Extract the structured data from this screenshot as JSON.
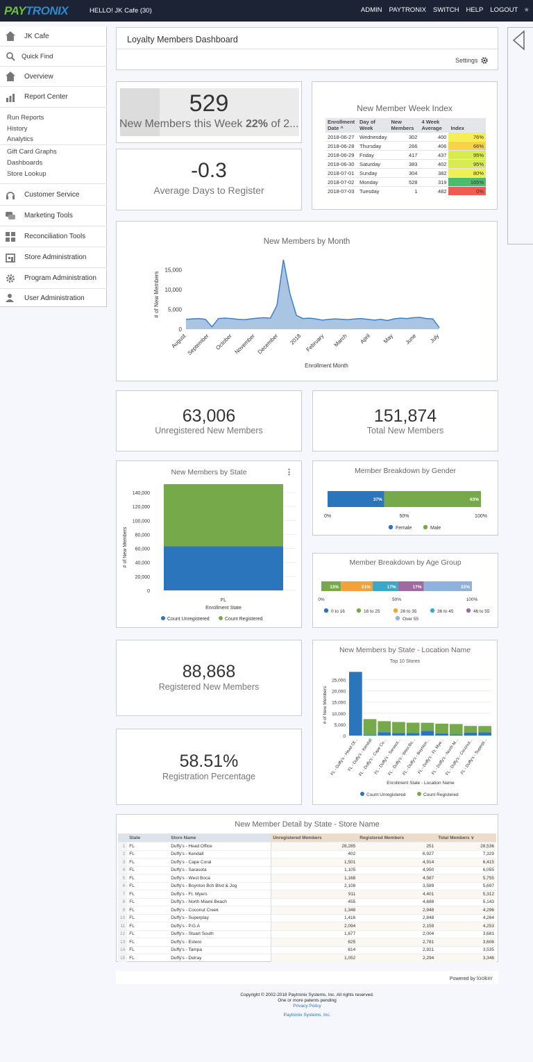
{
  "header": {
    "logo_pay": "PAY",
    "logo_tronix": "TRONIX",
    "greeting": "HELLO! JK Cafe (30)",
    "nav": [
      "ADMIN",
      "PAYTRONIX",
      "SWITCH",
      "HELP",
      "LOGOUT"
    ],
    "star": "★"
  },
  "sidebar": {
    "items": [
      {
        "label": "JK Cafe",
        "icon": "home-icon"
      },
      {
        "label": "Quick Find",
        "icon": "search-icon"
      },
      {
        "label": "Overview",
        "icon": "home-icon"
      },
      {
        "label": "Report Center",
        "icon": "bar-chart-icon"
      }
    ],
    "sub_items": [
      "Run Reports",
      "History",
      "Analytics",
      "Gift Card Graphs",
      "Dashboards",
      "Store Lookup"
    ],
    "sections": [
      {
        "label": "Customer Service",
        "icon": "headset-icon"
      },
      {
        "label": "Marketing Tools",
        "icon": "chat-icon"
      },
      {
        "label": "Reconciliation Tools",
        "icon": "grid-icon"
      },
      {
        "label": "Store Administration",
        "icon": "store-icon"
      },
      {
        "label": "Program Administration",
        "icon": "gear-icon"
      },
      {
        "label": "User Administration",
        "icon": "user-icon"
      }
    ]
  },
  "dashboard": {
    "title": "Loyalty Members Dashboard",
    "settings_label": "Settings"
  },
  "tiles": {
    "week_new": {
      "value": "529",
      "label_prefix": "New Members this Week ",
      "pct": "22%",
      "label_suffix": " of 2..."
    },
    "avg_days": {
      "value": "-0.3",
      "label": "Average Days to Register"
    },
    "unregistered": {
      "value": "63,006",
      "label": "Unregistered New Members"
    },
    "total": {
      "value": "151,874",
      "label": "Total New Members"
    },
    "registered": {
      "value": "88,868",
      "label": "Registered New Members"
    },
    "reg_pct": {
      "value": "58.51%",
      "label": "Registration Percentage"
    }
  },
  "week_index": {
    "title": "New Member Week Index",
    "headers": [
      "Enrollment Date ^",
      "Day of Week",
      "New Members",
      "4 Week Average",
      "Index"
    ],
    "rows": [
      {
        "date": "2018-06-27",
        "day": "Wednesday",
        "new": "302",
        "avg": "400",
        "index": "76%",
        "color": "#f5ef55"
      },
      {
        "date": "2018-06-28",
        "day": "Thursday",
        "new": "266",
        "avg": "406",
        "index": "66%",
        "color": "#f7d34a"
      },
      {
        "date": "2018-06-29",
        "day": "Friday",
        "new": "417",
        "avg": "437",
        "index": "95%",
        "color": "#d8ec52"
      },
      {
        "date": "2018-06-30",
        "day": "Saturday",
        "new": "383",
        "avg": "402",
        "index": "95%",
        "color": "#d8ec52"
      },
      {
        "date": "2018-07-01",
        "day": "Sunday",
        "new": "304",
        "avg": "382",
        "index": "80%",
        "color": "#eef055"
      },
      {
        "date": "2018-07-02",
        "day": "Monday",
        "new": "528",
        "avg": "319",
        "index": "165%",
        "color": "#4cbb6c"
      },
      {
        "date": "2018-07-03",
        "day": "Tuesday",
        "new": "1",
        "avg": "482",
        "index": "0%",
        "color": "#ef5c52"
      }
    ]
  },
  "chart_data": [
    {
      "type": "area",
      "title": "New Members by Month",
      "xlabel": "Enrollment Month",
      "ylabel": "# of New Members",
      "ylim": [
        0,
        17500
      ],
      "yticks": [
        "0",
        "5,000",
        "10,000",
        "15,000"
      ],
      "tick_labels": [
        "August",
        "September",
        "October",
        "November",
        "December",
        "2018",
        "February",
        "March",
        "April",
        "May",
        "June",
        "July"
      ],
      "values": [
        2500,
        2600,
        2700,
        2500,
        600,
        2700,
        2800,
        2700,
        2500,
        2400,
        2600,
        2800,
        2900,
        2800,
        6000,
        17500,
        9000,
        3500,
        2700,
        2800,
        2600,
        2300,
        2500,
        2600,
        2500,
        2400,
        2600,
        2700,
        2500,
        2300,
        2500,
        2200,
        2600,
        2800,
        2700,
        2900,
        3000,
        2700,
        2600,
        400
      ]
    },
    {
      "type": "bar",
      "title": "New Members by State",
      "xlabel": "Enrollment State",
      "ylabel": "# of New Members",
      "categories": [
        "FL"
      ],
      "ylim": [
        0,
        140000
      ],
      "yticks": [
        "0",
        "20,000",
        "40,000",
        "60,000",
        "80,000",
        "100,000",
        "120,000",
        "140,000"
      ],
      "series": [
        {
          "name": "Count Unregistered",
          "values": [
            63006
          ],
          "color": "#2a75bb"
        },
        {
          "name": "Count Registered",
          "values": [
            88868
          ],
          "color": "#76a94a"
        }
      ]
    },
    {
      "type": "bar",
      "title": "Member Breakdown by Gender",
      "ticks": [
        "0%",
        "50%",
        "100%"
      ],
      "series": [
        {
          "name": "Female",
          "value": 37,
          "label": "37%",
          "color": "#2a75bb"
        },
        {
          "name": "Male",
          "value": 63,
          "label": "63%",
          "color": "#76a94a"
        }
      ]
    },
    {
      "type": "bar",
      "title": "Member Breakdown by Age Group",
      "ticks": [
        "0%",
        "50%",
        "100%"
      ],
      "series": [
        {
          "name": "0 to 16",
          "value": 0,
          "label": "",
          "color": "#2a75bb"
        },
        {
          "name": "16 to 25",
          "value": 13,
          "label": "13%",
          "color": "#76a94a"
        },
        {
          "name": "26 to 35",
          "value": 21,
          "label": "21%",
          "color": "#f1a23b"
        },
        {
          "name": "36 to 45",
          "value": 17,
          "label": "17%",
          "color": "#3aa9c7"
        },
        {
          "name": "46 to 55",
          "value": 17,
          "label": "17%",
          "color": "#a06aa1"
        },
        {
          "name": "Over 55",
          "value": 32,
          "label": "32%",
          "color": "#8fb2dc"
        }
      ]
    },
    {
      "type": "bar",
      "title": "New Members by State - Location Name",
      "subtitle": "Top 10 Stores",
      "xlabel": "Enrollment State - Location Name",
      "ylabel": "# of New Members",
      "ylim": [
        0,
        28536
      ],
      "yticks": [
        "0",
        "5,000",
        "10,000",
        "15,000",
        "20,000",
        "25,000"
      ],
      "categories": [
        "FL - Duffy's - Head Of...",
        "FL - Duffy's - Kendall",
        "FL - Duffy's - Cape Co...",
        "FL - Duffy's - Sarasot...",
        "FL - Duffy's - West Bo...",
        "FL - Duffy's - Boynton...",
        "FL - Duffy's - Ft. Mye...",
        "FL - Duffy's - North M...",
        "FL - Duffy's - Coconut...",
        "FL - Duffy's - Superpl..."
      ],
      "series": [
        {
          "name": "Count Unregistered",
          "values": [
            28285,
            402,
            1501,
            1105,
            1168,
            2108,
            911,
            455,
            1348,
            1416
          ],
          "color": "#2a75bb"
        },
        {
          "name": "Count Registered",
          "values": [
            251,
            6927,
            4914,
            4950,
            4587,
            3589,
            4401,
            4688,
            2948,
            2848
          ],
          "color": "#76a94a"
        }
      ]
    }
  ],
  "detail": {
    "title": "New Member Detail by State - Store Name",
    "headers": [
      "State",
      "Store Name",
      "Unregistered Members",
      "Registered Members",
      "Total Members ∨"
    ],
    "rows": [
      [
        "1",
        "FL",
        "Duffy's - Head Office",
        "28,285",
        "251",
        "28,536"
      ],
      [
        "2",
        "FL",
        "Duffy's - Kendall",
        "402",
        "6,927",
        "7,329"
      ],
      [
        "3",
        "FL",
        "Duffy's - Cape Coral",
        "1,501",
        "4,914",
        "6,415"
      ],
      [
        "4",
        "FL",
        "Duffy's - Sarasota",
        "1,105",
        "4,950",
        "6,055"
      ],
      [
        "5",
        "FL",
        "Duffy's - West Boca",
        "1,168",
        "4,587",
        "5,755"
      ],
      [
        "6",
        "FL",
        "Duffy's - Boynton Bch Blvd & Jog",
        "2,108",
        "3,589",
        "5,697"
      ],
      [
        "7",
        "FL",
        "Duffy's - Ft. Myers",
        "911",
        "4,401",
        "5,312"
      ],
      [
        "8",
        "FL",
        "Duffy's - North Miami Beach",
        "455",
        "4,688",
        "5,143"
      ],
      [
        "9",
        "FL",
        "Duffy's - Coconut Creek",
        "1,348",
        "2,948",
        "4,296"
      ],
      [
        "10",
        "FL",
        "Duffy's - Superplay",
        "1,416",
        "2,848",
        "4,264"
      ],
      [
        "11",
        "FL",
        "Duffy's - P.G.A",
        "2,094",
        "2,159",
        "4,253"
      ],
      [
        "12",
        "FL",
        "Duffy's - Stuart South",
        "1,677",
        "2,004",
        "3,681"
      ],
      [
        "13",
        "FL",
        "Duffy's - Estero",
        "825",
        "2,781",
        "3,606"
      ],
      [
        "14",
        "FL",
        "Duffy's - Tampa",
        "614",
        "2,921",
        "3,535"
      ],
      [
        "15",
        "FL",
        "Duffy's - Delray",
        "1,052",
        "2,294",
        "3,346"
      ]
    ]
  },
  "footer": {
    "powered": "Powered by",
    "looker": "looker",
    "copyright": "Copyright © 2002-2018 Paytronix Systems, Inc. All rights reserved.",
    "patents": "One or more patents pending",
    "privacy": "Privacy Policy",
    "company": "Paytronix Systems, Inc."
  }
}
